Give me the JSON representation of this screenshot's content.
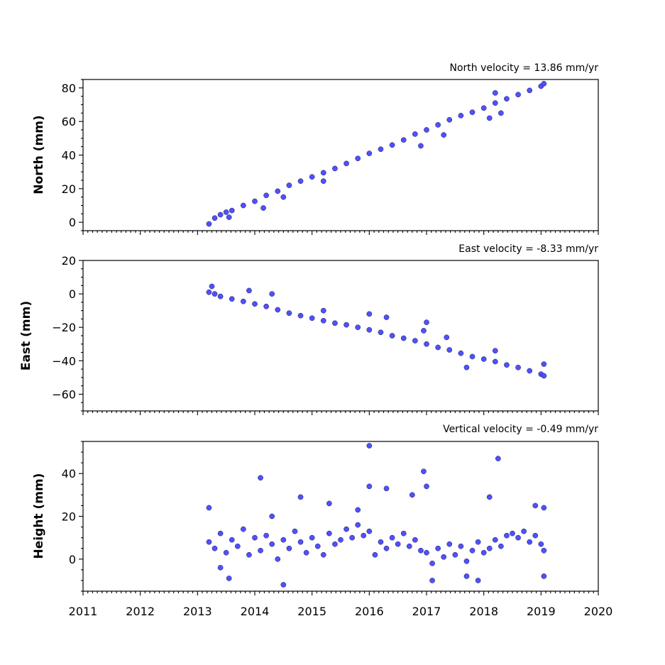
{
  "chart_data": [
    {
      "type": "scatter",
      "title": "North velocity = 13.86 mm/yr",
      "ylabel": "North (mm)",
      "xlim": [
        2011,
        2020
      ],
      "ylim": [
        -5,
        85
      ],
      "yticks": [
        0,
        20,
        40,
        60,
        80
      ],
      "x_tick_labels_shown": false,
      "marker_color": "#5050ff",
      "series": [
        {
          "points": [
            [
              2013.2,
              -1.0
            ],
            [
              2013.3,
              2.5
            ],
            [
              2013.4,
              4.5
            ],
            [
              2013.5,
              6.0
            ],
            [
              2013.6,
              7.0
            ],
            [
              2013.8,
              10.0
            ],
            [
              2014.0,
              12.5
            ],
            [
              2014.2,
              16.0
            ],
            [
              2014.4,
              18.5
            ],
            [
              2014.6,
              22.0
            ],
            [
              2014.8,
              24.5
            ],
            [
              2015.0,
              27.0
            ],
            [
              2015.2,
              29.5
            ],
            [
              2015.4,
              32.0
            ],
            [
              2015.6,
              35.0
            ],
            [
              2015.8,
              38.0
            ],
            [
              2016.0,
              41.0
            ],
            [
              2016.2,
              43.5
            ],
            [
              2016.4,
              46.0
            ],
            [
              2016.6,
              49.0
            ],
            [
              2016.8,
              52.5
            ],
            [
              2017.0,
              55.0
            ],
            [
              2017.2,
              58.0
            ],
            [
              2017.4,
              61.0
            ],
            [
              2017.6,
              63.5
            ],
            [
              2017.8,
              65.5
            ],
            [
              2018.0,
              68.0
            ],
            [
              2018.2,
              71.0
            ],
            [
              2018.4,
              73.5
            ],
            [
              2018.6,
              76.0
            ],
            [
              2018.8,
              78.5
            ],
            [
              2019.0,
              81.0
            ],
            [
              2019.05,
              82.5
            ],
            [
              2013.55,
              3.0
            ],
            [
              2014.15,
              8.5
            ],
            [
              2014.5,
              15.0
            ],
            [
              2015.2,
              24.5
            ],
            [
              2016.9,
              45.5
            ],
            [
              2017.3,
              52.0
            ],
            [
              2018.1,
              62.0
            ],
            [
              2018.2,
              77.0
            ],
            [
              2018.3,
              65.0
            ]
          ]
        }
      ]
    },
    {
      "type": "scatter",
      "title": "East velocity = -8.33 mm/yr",
      "ylabel": "East (mm)",
      "xlim": [
        2011,
        2020
      ],
      "ylim": [
        -70,
        20
      ],
      "yticks": [
        -60,
        -40,
        -20,
        0,
        20
      ],
      "x_tick_labels_shown": false,
      "marker_color": "#5050ff",
      "series": [
        {
          "points": [
            [
              2013.2,
              1.0
            ],
            [
              2013.3,
              0.0
            ],
            [
              2013.4,
              -1.5
            ],
            [
              2013.6,
              -3.0
            ],
            [
              2013.8,
              -4.5
            ],
            [
              2014.0,
              -6.0
            ],
            [
              2014.2,
              -7.5
            ],
            [
              2014.4,
              -9.5
            ],
            [
              2014.6,
              -11.5
            ],
            [
              2014.8,
              -13.0
            ],
            [
              2015.0,
              -14.5
            ],
            [
              2015.2,
              -16.0
            ],
            [
              2015.4,
              -17.5
            ],
            [
              2015.6,
              -18.5
            ],
            [
              2015.8,
              -20.0
            ],
            [
              2016.0,
              -21.5
            ],
            [
              2016.2,
              -23.0
            ],
            [
              2016.4,
              -25.0
            ],
            [
              2016.6,
              -26.5
            ],
            [
              2016.8,
              -28.0
            ],
            [
              2017.0,
              -30.0
            ],
            [
              2017.2,
              -32.0
            ],
            [
              2017.4,
              -33.5
            ],
            [
              2017.6,
              -35.5
            ],
            [
              2017.8,
              -37.5
            ],
            [
              2018.0,
              -39.0
            ],
            [
              2018.2,
              -40.5
            ],
            [
              2018.4,
              -42.5
            ],
            [
              2018.6,
              -44.0
            ],
            [
              2018.8,
              -46.0
            ],
            [
              2019.0,
              -48.0
            ],
            [
              2019.05,
              -49.0
            ],
            [
              2013.25,
              4.5
            ],
            [
              2013.9,
              2.0
            ],
            [
              2014.3,
              0.0
            ],
            [
              2015.2,
              -10.0
            ],
            [
              2016.0,
              -12.0
            ],
            [
              2016.3,
              -14.0
            ],
            [
              2017.0,
              -17.0
            ],
            [
              2016.95,
              -22.0
            ],
            [
              2017.35,
              -26.0
            ],
            [
              2017.7,
              -44.0
            ],
            [
              2018.2,
              -34.0
            ],
            [
              2019.05,
              -42.0
            ]
          ]
        }
      ]
    },
    {
      "type": "scatter",
      "title": "Vertical velocity = -0.49 mm/yr",
      "ylabel": "Height (mm)",
      "xlim": [
        2011,
        2020
      ],
      "ylim": [
        -15,
        55
      ],
      "yticks": [
        0,
        20,
        40
      ],
      "xticks": [
        2011,
        2012,
        2013,
        2014,
        2015,
        2016,
        2017,
        2018,
        2019,
        2020
      ],
      "x_tick_labels_shown": true,
      "marker_color": "#5050ff",
      "series": [
        {
          "points": [
            [
              2013.2,
              8
            ],
            [
              2013.3,
              5
            ],
            [
              2013.4,
              12
            ],
            [
              2013.5,
              3
            ],
            [
              2013.6,
              9
            ],
            [
              2013.7,
              6
            ],
            [
              2013.8,
              14
            ],
            [
              2013.9,
              2
            ],
            [
              2014.0,
              10
            ],
            [
              2014.1,
              4
            ],
            [
              2014.2,
              11
            ],
            [
              2014.3,
              7
            ],
            [
              2014.4,
              0
            ],
            [
              2014.5,
              9
            ],
            [
              2014.6,
              5
            ],
            [
              2014.7,
              13
            ],
            [
              2014.8,
              8
            ],
            [
              2014.9,
              3
            ],
            [
              2015.0,
              10
            ],
            [
              2015.1,
              6
            ],
            [
              2015.2,
              2
            ],
            [
              2015.3,
              12
            ],
            [
              2015.4,
              7
            ],
            [
              2015.5,
              9
            ],
            [
              2015.6,
              14
            ],
            [
              2015.7,
              10
            ],
            [
              2015.8,
              16
            ],
            [
              2015.9,
              11
            ],
            [
              2016.0,
              13
            ],
            [
              2016.1,
              2
            ],
            [
              2016.2,
              8
            ],
            [
              2016.3,
              5
            ],
            [
              2016.4,
              10
            ],
            [
              2016.5,
              7
            ],
            [
              2016.6,
              12
            ],
            [
              2016.7,
              6
            ],
            [
              2016.8,
              9
            ],
            [
              2016.9,
              4
            ],
            [
              2017.0,
              3
            ],
            [
              2017.1,
              -2
            ],
            [
              2017.2,
              5
            ],
            [
              2017.3,
              1
            ],
            [
              2017.4,
              7
            ],
            [
              2017.5,
              2
            ],
            [
              2017.6,
              6
            ],
            [
              2017.7,
              -1
            ],
            [
              2017.8,
              4
            ],
            [
              2017.9,
              8
            ],
            [
              2018.0,
              3
            ],
            [
              2018.1,
              5
            ],
            [
              2018.2,
              9
            ],
            [
              2018.3,
              6
            ],
            [
              2018.4,
              11
            ],
            [
              2018.5,
              12
            ],
            [
              2018.6,
              10
            ],
            [
              2018.7,
              13
            ],
            [
              2018.8,
              8
            ],
            [
              2018.9,
              11
            ],
            [
              2019.0,
              7
            ],
            [
              2019.05,
              4
            ],
            [
              2013.2,
              24
            ],
            [
              2013.4,
              -4
            ],
            [
              2013.55,
              -9
            ],
            [
              2014.1,
              38
            ],
            [
              2014.3,
              20
            ],
            [
              2014.5,
              -12
            ],
            [
              2014.8,
              29
            ],
            [
              2015.3,
              26
            ],
            [
              2015.8,
              23
            ],
            [
              2016.0,
              53
            ],
            [
              2016.0,
              34
            ],
            [
              2016.3,
              33
            ],
            [
              2016.75,
              30
            ],
            [
              2016.95,
              41
            ],
            [
              2017.0,
              34
            ],
            [
              2017.1,
              -10
            ],
            [
              2017.7,
              -8
            ],
            [
              2017.9,
              -10
            ],
            [
              2018.1,
              29
            ],
            [
              2018.25,
              47
            ],
            [
              2018.9,
              25
            ],
            [
              2019.05,
              24
            ],
            [
              2019.05,
              -8
            ]
          ]
        }
      ]
    }
  ]
}
